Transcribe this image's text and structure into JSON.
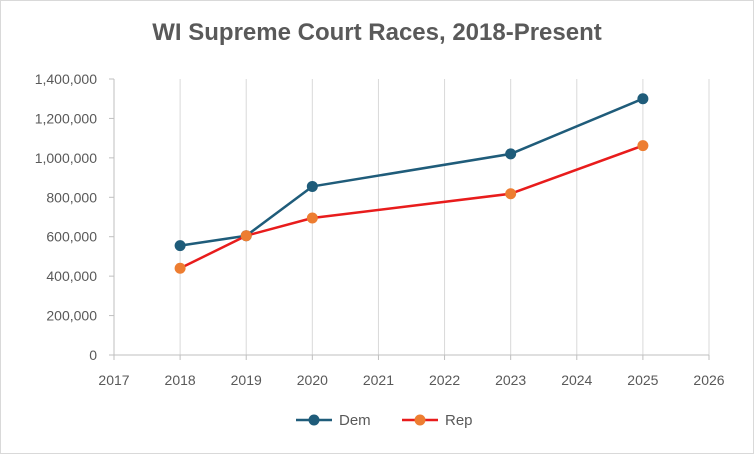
{
  "chart_data": {
    "type": "line",
    "title": "WI Supreme Court Races, 2018-Present",
    "xlabel": "",
    "ylabel": "",
    "xlim": [
      2017,
      2026
    ],
    "ylim": [
      0,
      1400000
    ],
    "x_ticks": [
      2017,
      2018,
      2019,
      2020,
      2021,
      2022,
      2023,
      2024,
      2025,
      2026
    ],
    "y_ticks": [
      0,
      200000,
      400000,
      600000,
      800000,
      1000000,
      1200000,
      1400000
    ],
    "y_tick_labels": [
      "0",
      "200,000",
      "400,000",
      "600,000",
      "800,000",
      "1,000,000",
      "1,200,000",
      "1,400,000"
    ],
    "grid": "vertical",
    "legend_position": "bottom",
    "series": [
      {
        "name": "Dem",
        "color": "#1f5c7a",
        "line_color": "#1f5c7a",
        "points": [
          {
            "x": 2018,
            "y": 555000
          },
          {
            "x": 2019,
            "y": 605000
          },
          {
            "x": 2020,
            "y": 855000
          },
          {
            "x": 2023,
            "y": 1020000
          },
          {
            "x": 2025,
            "y": 1300000
          }
        ]
      },
      {
        "name": "Rep",
        "color": "#ed7d31",
        "line_color": "#e81c1c",
        "points": [
          {
            "x": 2018,
            "y": 440000
          },
          {
            "x": 2019,
            "y": 605000
          },
          {
            "x": 2020,
            "y": 695000
          },
          {
            "x": 2023,
            "y": 818000
          },
          {
            "x": 2025,
            "y": 1062000
          }
        ]
      }
    ]
  }
}
